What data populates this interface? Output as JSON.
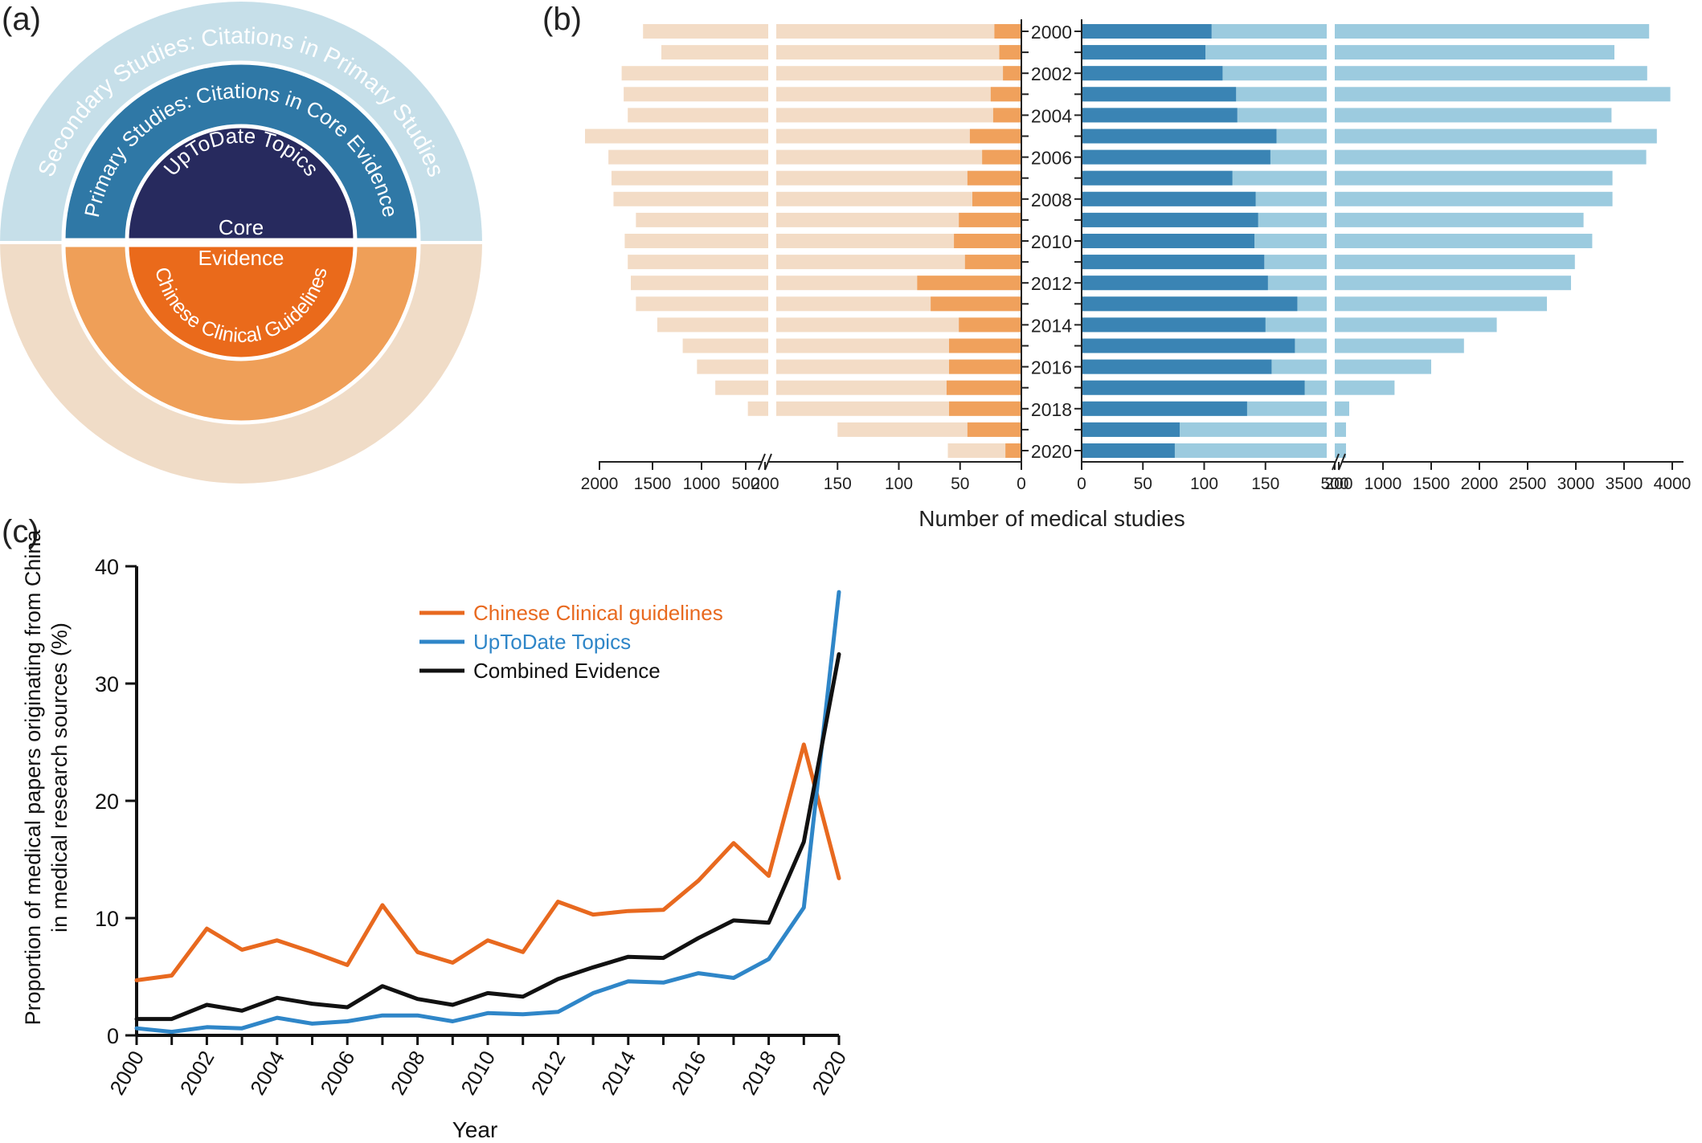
{
  "panels": {
    "a": "(a)",
    "b": "(b)",
    "c": "(c)"
  },
  "colors": {
    "secondary_top": "#c6dfe9",
    "primary_top": "#2f78a6",
    "core_top": "#272a5e",
    "secondary_bottom": "#f0dcc7",
    "primary_bottom": "#ef9f58",
    "core_bottom": "#ea6a1b",
    "orange_light": "#f3dcc6",
    "orange_dark": "#f0a15c",
    "blue_dark": "#3a84b4",
    "blue_light": "#9ccbdf",
    "line_chinese": "#e8691f",
    "line_uptodate": "#2f86c8",
    "line_combined": "#111111"
  },
  "circle_diagram": {
    "secondary_label": "Secondary Studies: Citations in Primary Studies",
    "primary_label": "Primary Studies: Citations in Core Evidence",
    "uptodate_label": "UpToDate Topics",
    "core_label": "Core",
    "evidence_label": "Evidence",
    "guidelines_label": "Chinese Clinical Guidelines"
  },
  "chart_data": [
    {
      "type": "bar",
      "panel": "b",
      "xlabel": "Number of medical studies",
      "year_labels": [
        "2000",
        "2002",
        "2004",
        "2006",
        "2008",
        "2010",
        "2012",
        "2014",
        "2016",
        "2018",
        "2020"
      ],
      "years": [
        2000,
        2001,
        2002,
        2003,
        2004,
        2005,
        2006,
        2007,
        2008,
        2009,
        2010,
        2011,
        2012,
        2013,
        2014,
        2015,
        2016,
        2017,
        2018,
        2019,
        2020
      ],
      "left_axis_ticks_broken": [
        "2000",
        "1500",
        "1000",
        "500",
        "200"
      ],
      "left_axis_ticks_linear": [
        "150",
        "100",
        "50",
        "0"
      ],
      "right_axis_ticks_linear": [
        "0",
        "50",
        "100",
        "150",
        "200"
      ],
      "right_axis_ticks_broken": [
        "500",
        "1000",
        "1500",
        "2000",
        "2500",
        "3000",
        "3500",
        "4000"
      ],
      "series": [
        {
          "name": "Chinese Clinical Guidelines core evidence",
          "side": "left",
          "values": [
            22,
            18,
            15,
            25,
            23,
            42,
            32,
            44,
            40,
            51,
            55,
            46,
            85,
            74,
            51,
            59,
            59,
            61,
            59,
            44,
            13
          ]
        },
        {
          "name": "Chinese Clinical Guidelines primary studies",
          "side": "left",
          "values": [
            1430,
            1250,
            1640,
            1620,
            1580,
            2000,
            1770,
            1740,
            1720,
            1500,
            1610,
            1580,
            1550,
            1500,
            1290,
            1040,
            900,
            720,
            400,
            150,
            60
          ]
        },
        {
          "name": "UpToDate Topics core evidence",
          "side": "right",
          "values": [
            106,
            101,
            115,
            126,
            127,
            159,
            154,
            123,
            142,
            144,
            141,
            149,
            152,
            176,
            150,
            174,
            155,
            182,
            135,
            80,
            76
          ]
        },
        {
          "name": "UpToDate Topics primary studies",
          "side": "right",
          "values": [
            3760,
            3400,
            3740,
            3980,
            3370,
            3840,
            3730,
            3380,
            3380,
            3080,
            3170,
            2990,
            2950,
            2700,
            2180,
            1840,
            1500,
            1120,
            650,
            300,
            290
          ]
        }
      ]
    },
    {
      "type": "line",
      "panel": "c",
      "xlabel": "Year",
      "ylabel_line1": "Proportion of medical papers originating from China",
      "ylabel_line2": "in medical research sources (%)",
      "ylim": [
        0,
        40
      ],
      "yticks": [
        "0",
        "10",
        "20",
        "30",
        "40"
      ],
      "xticks": [
        "2000",
        "2002",
        "2004",
        "2006",
        "2008",
        "2010",
        "2012",
        "2014",
        "2016",
        "2018",
        "2020"
      ],
      "x": [
        2000,
        2001,
        2002,
        2003,
        2004,
        2005,
        2006,
        2007,
        2008,
        2009,
        2010,
        2011,
        2012,
        2013,
        2014,
        2015,
        2016,
        2017,
        2018,
        2019,
        2020
      ],
      "series": [
        {
          "name": "Chinese Clinical guidelines",
          "values": [
            4.7,
            5.1,
            9.1,
            7.3,
            8.1,
            7.1,
            6.0,
            11.1,
            7.1,
            6.2,
            8.1,
            7.1,
            11.4,
            10.3,
            10.6,
            10.7,
            13.2,
            16.4,
            13.6,
            24.8,
            13.4
          ]
        },
        {
          "name": "UpToDate Topics",
          "values": [
            0.6,
            0.3,
            0.7,
            0.6,
            1.5,
            1.0,
            1.2,
            1.7,
            1.7,
            1.2,
            1.9,
            1.8,
            2.0,
            3.6,
            4.6,
            4.5,
            5.3,
            4.9,
            6.5,
            10.9,
            37.8
          ]
        },
        {
          "name": "Combined Evidence",
          "values": [
            1.4,
            1.4,
            2.6,
            2.1,
            3.2,
            2.7,
            2.4,
            4.2,
            3.1,
            2.6,
            3.6,
            3.3,
            4.8,
            5.8,
            6.7,
            6.6,
            8.3,
            9.8,
            9.6,
            16.5,
            32.5
          ]
        }
      ]
    }
  ]
}
